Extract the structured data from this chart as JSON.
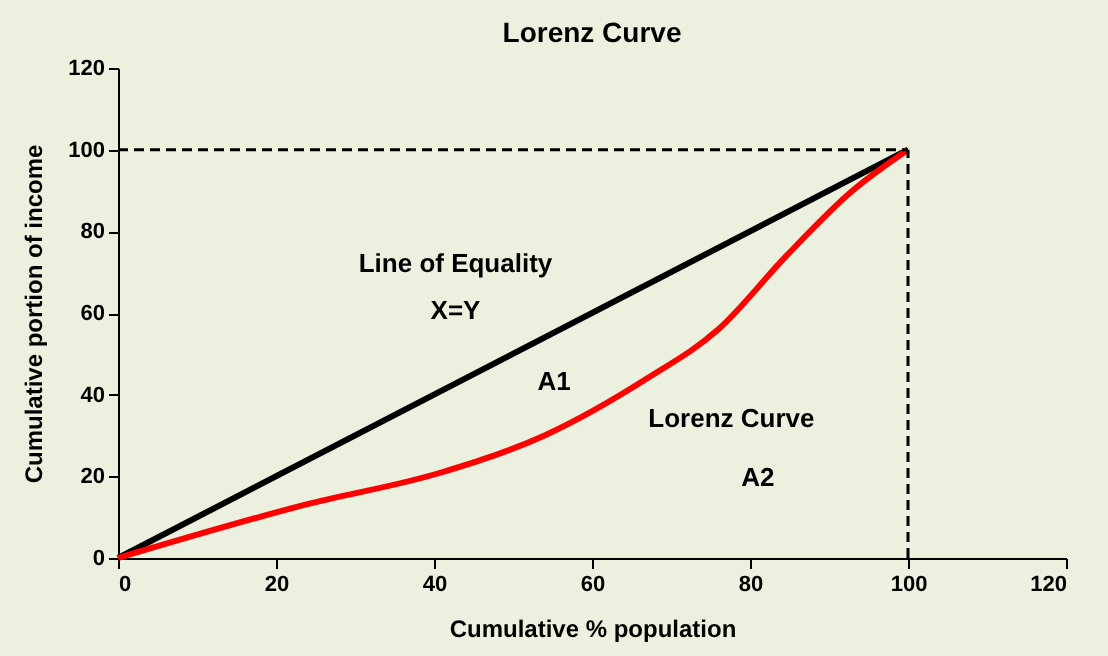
{
  "chart_data": {
    "type": "line",
    "title": "Lorenz Curve",
    "xlabel": "Cumulative % population",
    "ylabel": "Cumulative portion of income",
    "series": [
      {
        "x": [
          0,
          100
        ],
        "values": [
          0,
          100
        ],
        "color": "#000000",
        "line_style": "solid"
      },
      {
        "x": [
          0,
          23.6,
          41,
          54,
          67,
          76,
          84.6,
          93,
          100
        ],
        "values": [
          0,
          13,
          21,
          30,
          44,
          56,
          74,
          90,
          100
        ],
        "color": "#ff0000",
        "line_style": "solid"
      },
      {
        "x": [
          0,
          100
        ],
        "values": [
          100,
          100
        ],
        "color": "#000000",
        "line_style": "dashed"
      },
      {
        "x": [
          100,
          100
        ],
        "values": [
          0,
          100
        ],
        "color": "#000000",
        "line_style": "dashed"
      }
    ],
    "xlim": [
      0,
      120
    ],
    "ylim": [
      0,
      120
    ],
    "xticks": [
      0,
      20,
      40,
      60,
      80,
      100,
      120
    ],
    "yticks": [
      0,
      20,
      40,
      60,
      80,
      100,
      120
    ],
    "grid": false,
    "marker": "none",
    "annotations": [
      "Line of Equality",
      "X=Y",
      "A1",
      "Lorenz Curve",
      "A2"
    ]
  }
}
